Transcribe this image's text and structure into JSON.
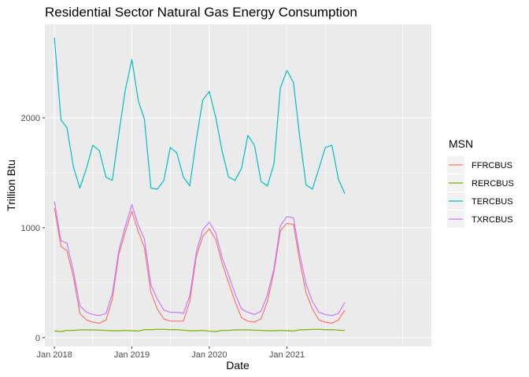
{
  "chart_data": {
    "type": "line",
    "title": "Residential Sector Natural Gas Energy Consumption",
    "xlabel": "Date",
    "ylabel": "Trillion Btu",
    "legend_title": "MSN",
    "legend_position": "right",
    "grid": true,
    "ylim": [
      -80,
      2850
    ],
    "xlim": [
      "2017-11-17",
      "2022-11-13"
    ],
    "x_ticks": [
      "Jan 2018",
      "Jan 2019",
      "Jan 2020",
      "Jan 2021"
    ],
    "y_ticks": [
      0,
      1000,
      2000
    ],
    "x": [
      "2018-01",
      "2018-02",
      "2018-03",
      "2018-04",
      "2018-05",
      "2018-06",
      "2018-07",
      "2018-08",
      "2018-09",
      "2018-10",
      "2018-11",
      "2018-12",
      "2019-01",
      "2019-02",
      "2019-03",
      "2019-04",
      "2019-05",
      "2019-06",
      "2019-07",
      "2019-08",
      "2019-09",
      "2019-10",
      "2019-11",
      "2019-12",
      "2020-01",
      "2020-02",
      "2020-03",
      "2020-04",
      "2020-05",
      "2020-06",
      "2020-07",
      "2020-08",
      "2020-09",
      "2020-10",
      "2020-11",
      "2020-12",
      "2021-01",
      "2021-02",
      "2021-03",
      "2021-04",
      "2021-05",
      "2021-06",
      "2021-07",
      "2021-08",
      "2021-09",
      "2021-10"
    ],
    "series": [
      {
        "name": "FFRCBUS",
        "color": "#F8766D",
        "values": [
          1180,
          830,
          790,
          550,
          220,
          160,
          140,
          130,
          160,
          350,
          760,
          960,
          1150,
          960,
          820,
          410,
          260,
          170,
          150,
          150,
          150,
          330,
          740,
          920,
          990,
          890,
          680,
          500,
          330,
          180,
          150,
          140,
          170,
          330,
          600,
          970,
          1040,
          1030,
          710,
          410,
          260,
          160,
          140,
          130,
          160,
          250
        ]
      },
      {
        "name": "RERCBUS",
        "color": "#7CAE00",
        "values": [
          60,
          55,
          65,
          65,
          70,
          70,
          70,
          68,
          65,
          62,
          62,
          65,
          62,
          60,
          72,
          72,
          75,
          75,
          72,
          72,
          68,
          62,
          62,
          65,
          58,
          55,
          65,
          65,
          70,
          70,
          70,
          68,
          65,
          62,
          62,
          65,
          62,
          60,
          70,
          72,
          75,
          75,
          72,
          72,
          68,
          65
        ]
      },
      {
        "name": "TERCBUS",
        "color": "#00BFC4",
        "values": [
          2730,
          1980,
          1910,
          1550,
          1360,
          1540,
          1750,
          1700,
          1460,
          1430,
          1860,
          2250,
          2530,
          2150,
          1990,
          1360,
          1350,
          1430,
          1730,
          1680,
          1460,
          1380,
          1800,
          2160,
          2240,
          2000,
          1700,
          1460,
          1430,
          1540,
          1840,
          1750,
          1420,
          1380,
          1580,
          2270,
          2430,
          2320,
          1850,
          1390,
          1350,
          1540,
          1730,
          1750,
          1440,
          1310
        ]
      },
      {
        "name": "TXRCBUS",
        "color": "#C77CFF",
        "values": [
          1240,
          880,
          860,
          600,
          290,
          230,
          210,
          200,
          220,
          400,
          800,
          1010,
          1210,
          1020,
          900,
          480,
          350,
          250,
          230,
          230,
          220,
          380,
          780,
          980,
          1050,
          950,
          730,
          570,
          400,
          260,
          230,
          210,
          240,
          390,
          630,
          1020,
          1100,
          1090,
          770,
          490,
          330,
          230,
          210,
          200,
          220,
          320
        ]
      }
    ]
  }
}
